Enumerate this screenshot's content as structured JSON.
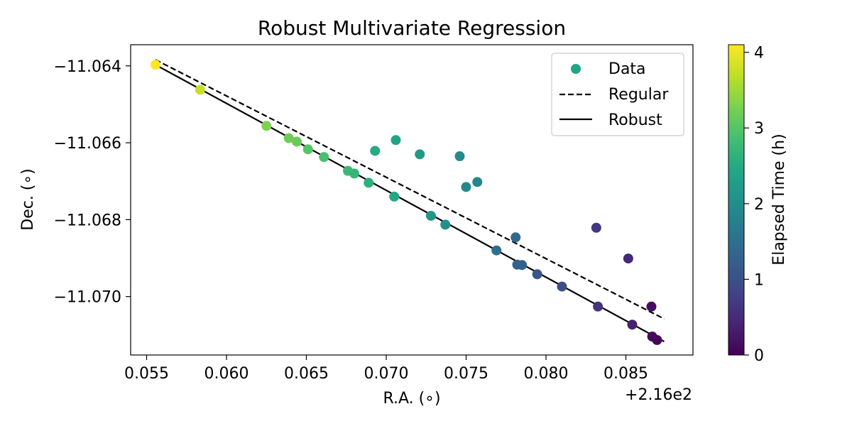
{
  "chart_data": {
    "type": "scatter",
    "title": "Robust Multivariate Regression",
    "xlabel": "R.A. (∘)",
    "ylabel": "Dec. (∘)",
    "x_offset_text": "+2.16e2",
    "xlim": [
      0.054,
      0.0892
    ],
    "ylim": [
      -11.07152,
      -11.06345
    ],
    "xticks": [
      0.055,
      0.06,
      0.065,
      0.07,
      0.075,
      0.08,
      0.085
    ],
    "xtick_labels": [
      "0.055",
      "0.060",
      "0.065",
      "0.070",
      "0.075",
      "0.080",
      "0.085"
    ],
    "yticks": [
      -11.064,
      -11.066,
      -11.068,
      -11.07
    ],
    "ytick_labels": [
      "−11.064",
      "−11.066",
      "−11.068",
      "−11.070"
    ],
    "grid": false,
    "legend": {
      "position": "upper right",
      "entries": [
        "Data",
        "Regular",
        "Robust"
      ]
    },
    "colorbar": {
      "label": "Elapsed Time (h)",
      "range": [
        0,
        4.1
      ],
      "ticks": [
        0,
        1,
        2,
        3,
        4
      ],
      "tick_labels": [
        "0",
        "1",
        "2",
        "3",
        "4"
      ],
      "colormap": "viridis"
    },
    "points": [
      {
        "x": 0.05555,
        "y": -11.06397,
        "t": 4.1
      },
      {
        "x": 0.05835,
        "y": -11.06462,
        "t": 3.75
      },
      {
        "x": 0.0625,
        "y": -11.06556,
        "t": 3.3
      },
      {
        "x": 0.0639,
        "y": -11.06588,
        "t": 3.2
      },
      {
        "x": 0.0644,
        "y": -11.06597,
        "t": 3.15
      },
      {
        "x": 0.0651,
        "y": -11.06617,
        "t": 3.0
      },
      {
        "x": 0.0661,
        "y": -11.06637,
        "t": 2.9
      },
      {
        "x": 0.0676,
        "y": -11.06673,
        "t": 2.75
      },
      {
        "x": 0.068,
        "y": -11.0668,
        "t": 2.7
      },
      {
        "x": 0.0689,
        "y": -11.06704,
        "t": 2.6
      },
      {
        "x": 0.0693,
        "y": -11.06621,
        "t": 2.5
      },
      {
        "x": 0.0705,
        "y": -11.0674,
        "t": 2.45
      },
      {
        "x": 0.0706,
        "y": -11.06593,
        "t": 2.4
      },
      {
        "x": 0.0721,
        "y": -11.0663,
        "t": 2.2
      },
      {
        "x": 0.0728,
        "y": -11.0679,
        "t": 2.15
      },
      {
        "x": 0.0737,
        "y": -11.06813,
        "t": 2.05
      },
      {
        "x": 0.0746,
        "y": -11.06635,
        "t": 1.95
      },
      {
        "x": 0.075,
        "y": -11.06715,
        "t": 1.9
      },
      {
        "x": 0.0757,
        "y": -11.06702,
        "t": 1.85
      },
      {
        "x": 0.0769,
        "y": -11.0688,
        "t": 1.5
      },
      {
        "x": 0.0781,
        "y": -11.06846,
        "t": 1.4
      },
      {
        "x": 0.0782,
        "y": -11.06917,
        "t": 1.3
      },
      {
        "x": 0.0785,
        "y": -11.06918,
        "t": 1.25
      },
      {
        "x": 0.07945,
        "y": -11.06942,
        "t": 1.1
      },
      {
        "x": 0.081,
        "y": -11.06974,
        "t": 0.95
      },
      {
        "x": 0.08315,
        "y": -11.06821,
        "t": 0.65
      },
      {
        "x": 0.08325,
        "y": -11.07026,
        "t": 0.6
      },
      {
        "x": 0.08515,
        "y": -11.06901,
        "t": 0.45
      },
      {
        "x": 0.0854,
        "y": -11.07073,
        "t": 0.35
      },
      {
        "x": 0.0866,
        "y": -11.07026,
        "t": 0.15
      },
      {
        "x": 0.08665,
        "y": -11.07104,
        "t": 0.1
      },
      {
        "x": 0.08695,
        "y": -11.07113,
        "t": 0.05
      }
    ],
    "lines": [
      {
        "name": "Regular",
        "style": "dashed",
        "x": [
          0.05555,
          0.0874
        ],
        "y": [
          -11.06384,
          -11.07058
        ]
      },
      {
        "name": "Robust",
        "style": "solid",
        "x": [
          0.05555,
          0.0874
        ],
        "y": [
          -11.06397,
          -11.07117
        ]
      }
    ],
    "colors": {
      "line": "#000000",
      "legend_marker": "#21a685"
    }
  }
}
